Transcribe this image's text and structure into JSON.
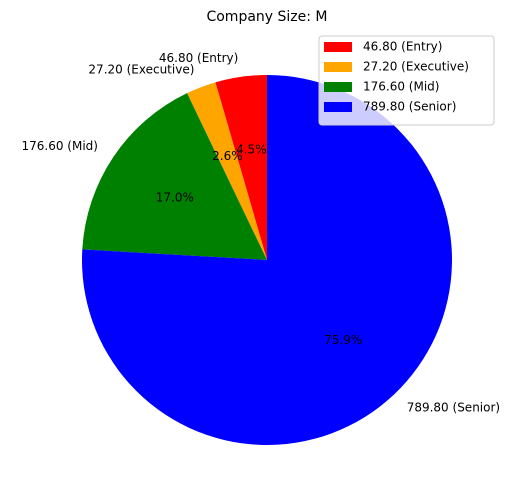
{
  "chart_data": {
    "type": "pie",
    "title": "Company Size: M",
    "start_angle_deg": 90,
    "direction": "counterclockwise",
    "slices": [
      {
        "label": "46.80 (Entry)",
        "value": 46.8,
        "percent": "4.5%",
        "color": "#ff0000"
      },
      {
        "label": "27.20 (Executive)",
        "value": 27.2,
        "percent": "2.6%",
        "color": "#ffa500"
      },
      {
        "label": "176.60 (Mid)",
        "value": 176.6,
        "percent": "17.0%",
        "color": "#008000"
      },
      {
        "label": "789.80 (Senior)",
        "value": 789.8,
        "percent": "75.9%",
        "color": "#0000ff"
      }
    ],
    "legend_position": "upper right"
  }
}
